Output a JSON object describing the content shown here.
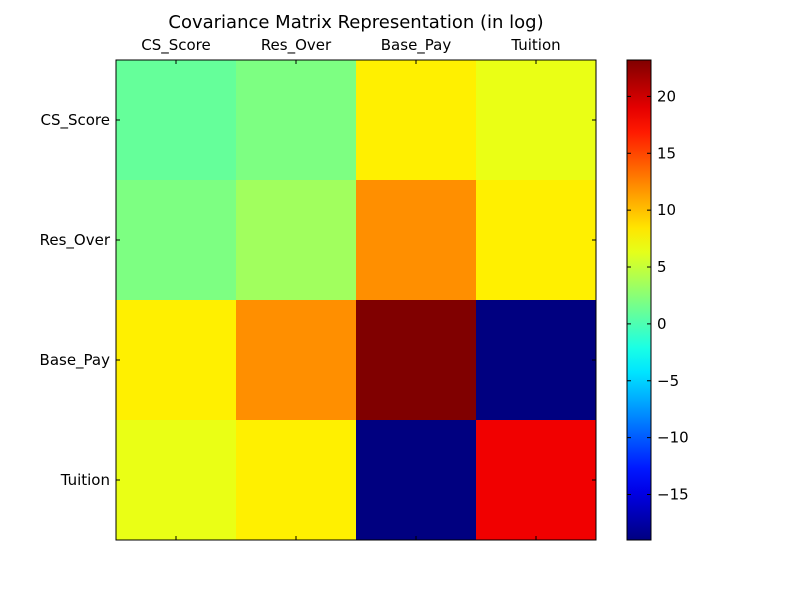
{
  "chart_data": {
    "type": "heatmap",
    "title": "Covariance Matrix Representation (in log)",
    "xlabel": "",
    "ylabel": "",
    "x_categories": [
      "CS_Score",
      "Res_Over",
      "Base_Pay",
      "Tuition"
    ],
    "y_categories": [
      "CS_Score",
      "Res_Over",
      "Base_Pay",
      "Tuition"
    ],
    "values": [
      [
        1.0,
        2.0,
        8.0,
        6.5
      ],
      [
        2.0,
        3.5,
        12.0,
        8.0
      ],
      [
        8.0,
        12.0,
        23.2,
        -19.0
      ],
      [
        6.5,
        8.0,
        -19.0,
        18.5
      ]
    ],
    "colormap": "jet",
    "colorbar": {
      "min": -19.0,
      "max": 23.2,
      "ticks": [
        -15,
        -10,
        -5,
        0,
        5,
        10,
        15,
        20
      ],
      "tick_labels": [
        "−15",
        "−10",
        "−5",
        "0",
        "5",
        "10",
        "15",
        "20"
      ]
    },
    "grid": false,
    "x_ticks_position": "top"
  }
}
